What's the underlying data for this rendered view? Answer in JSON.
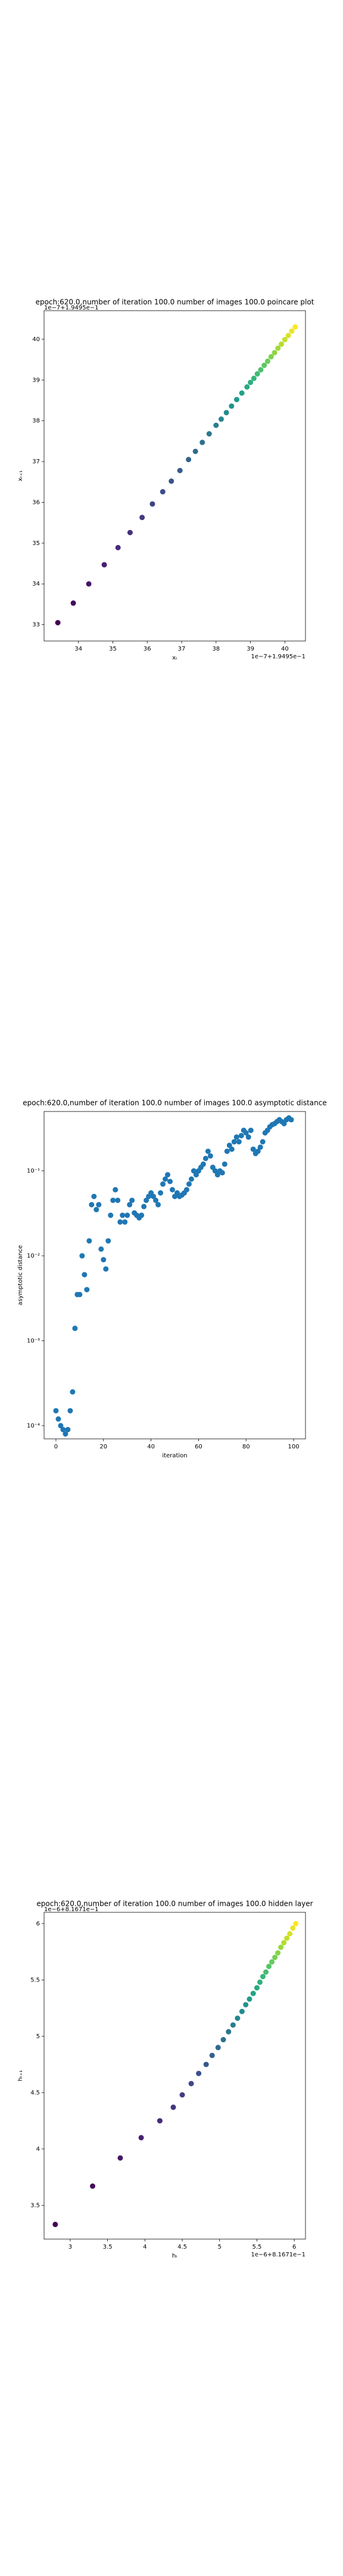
{
  "chart_data": [
    {
      "type": "scatter",
      "title": "epoch:620.0,number of iteration 100.0  number of images 100.0 poincare plot",
      "xlabel": "xₜ",
      "ylabel": "xₜ₊₁",
      "x_offset": "1e−7+1.9495e−1",
      "y_offset": "1e−7+1.9495e−1",
      "colormap": "viridis",
      "x": [
        33.4,
        33.85,
        34.3,
        34.75,
        35.15,
        35.5,
        35.85,
        36.15,
        36.45,
        36.7,
        36.95,
        37.2,
        37.4,
        37.6,
        37.8,
        38.0,
        38.15,
        38.3,
        38.45,
        38.6,
        38.75,
        38.9,
        39.0,
        39.1,
        39.2,
        39.3,
        39.4,
        39.5,
        39.6,
        39.7,
        39.8,
        39.9,
        40.0,
        40.1,
        40.2,
        40.3
      ],
      "values": [
        33.05,
        33.53,
        34.0,
        34.47,
        34.89,
        35.26,
        35.63,
        35.96,
        36.26,
        36.52,
        36.78,
        37.05,
        37.25,
        37.47,
        37.68,
        37.89,
        38.04,
        38.2,
        38.36,
        38.52,
        38.68,
        38.83,
        38.94,
        39.04,
        39.15,
        39.25,
        39.36,
        39.46,
        39.57,
        39.67,
        39.78,
        39.88,
        39.99,
        40.09,
        40.2,
        40.3
      ],
      "xlim": [
        33.0,
        40.6
      ],
      "ylim": [
        32.6,
        40.7
      ],
      "xticks": [
        34,
        35,
        36,
        37,
        38,
        39,
        40
      ],
      "yticks": [
        33,
        34,
        35,
        36,
        37,
        38,
        39,
        40
      ]
    },
    {
      "type": "scatter",
      "title": "epoch:620.0,number of iteration 100.0  number of images 100.0 asymptotic distance",
      "xlabel": "iteration",
      "ylabel": "asymptotic distance",
      "color": "#1f77b4",
      "log_y": true,
      "x": [
        0,
        1,
        2,
        3,
        4,
        5,
        6,
        7,
        8,
        9,
        10,
        11,
        12,
        13,
        14,
        15,
        16,
        17,
        18,
        19,
        20,
        21,
        22,
        23,
        24,
        25,
        26,
        27,
        28,
        29,
        30,
        31,
        32,
        33,
        34,
        35,
        36,
        37,
        38,
        39,
        40,
        41,
        42,
        43,
        44,
        45,
        46,
        47,
        48,
        49,
        50,
        51,
        52,
        53,
        54,
        55,
        56,
        57,
        58,
        59,
        60,
        61,
        62,
        63,
        64,
        65,
        66,
        67,
        68,
        69,
        70,
        71,
        72,
        73,
        74,
        75,
        76,
        77,
        78,
        79,
        80,
        81,
        82,
        83,
        84,
        85,
        86,
        87,
        88,
        89,
        90,
        91,
        92,
        93,
        94,
        95,
        96,
        97,
        98,
        99
      ],
      "values": [
        0.00015,
        0.00012,
        0.0001,
        9e-05,
        8e-05,
        9e-05,
        0.00015,
        0.00025,
        0.0014,
        0.0035,
        0.0035,
        0.01,
        0.006,
        0.004,
        0.015,
        0.04,
        0.05,
        0.035,
        0.04,
        0.012,
        0.009,
        0.007,
        0.015,
        0.03,
        0.045,
        0.06,
        0.045,
        0.025,
        0.03,
        0.025,
        0.03,
        0.04,
        0.045,
        0.032,
        0.03,
        0.028,
        0.03,
        0.038,
        0.045,
        0.05,
        0.055,
        0.05,
        0.045,
        0.04,
        0.055,
        0.07,
        0.08,
        0.09,
        0.075,
        0.06,
        0.05,
        0.055,
        0.05,
        0.052,
        0.055,
        0.06,
        0.07,
        0.08,
        0.1,
        0.09,
        0.1,
        0.11,
        0.12,
        0.14,
        0.17,
        0.15,
        0.11,
        0.1,
        0.09,
        0.1,
        0.095,
        0.12,
        0.17,
        0.2,
        0.18,
        0.22,
        0.25,
        0.22,
        0.26,
        0.3,
        0.28,
        0.25,
        0.3,
        0.18,
        0.16,
        0.17,
        0.19,
        0.22,
        0.28,
        0.3,
        0.33,
        0.35,
        0.36,
        0.38,
        0.4,
        0.38,
        0.36,
        0.4,
        0.42,
        0.4
      ],
      "xlim": [
        -5,
        105
      ],
      "ylim": [
        7e-05,
        0.5
      ],
      "xticks": [
        0,
        20,
        40,
        60,
        80,
        100
      ],
      "yticks": [
        {
          "value": 0.0001,
          "label": "10⁻⁴"
        },
        {
          "value": 0.001,
          "label": "10⁻³"
        },
        {
          "value": 0.01,
          "label": "10⁻²"
        },
        {
          "value": 0.1,
          "label": "10⁻¹"
        }
      ]
    },
    {
      "type": "scatter",
      "title": "epoch:620.0,number of iteration 100.0  number of images 100.0 hidden layer",
      "xlabel": "hₜ",
      "ylabel": "hₜ₊₁",
      "x_offset": "1e−6+8.1671e−1",
      "y_offset": "1e−6+8.1671e−1",
      "colormap": "viridis",
      "x": [
        2.8,
        3.3,
        3.67,
        3.95,
        4.2,
        4.38,
        4.5,
        4.62,
        4.72,
        4.82,
        4.9,
        4.98,
        5.05,
        5.12,
        5.18,
        5.24,
        5.3,
        5.35,
        5.4,
        5.45,
        5.5,
        5.54,
        5.58,
        5.62,
        5.66,
        5.7,
        5.74,
        5.78,
        5.82,
        5.86,
        5.9,
        5.94,
        5.98,
        6.02
      ],
      "values": [
        3.33,
        3.67,
        3.92,
        4.1,
        4.25,
        4.37,
        4.48,
        4.58,
        4.67,
        4.75,
        4.83,
        4.9,
        4.97,
        5.04,
        5.1,
        5.16,
        5.22,
        5.28,
        5.33,
        5.38,
        5.43,
        5.48,
        5.53,
        5.57,
        5.62,
        5.66,
        5.7,
        5.74,
        5.79,
        5.83,
        5.87,
        5.91,
        5.96,
        6.0
      ],
      "xlim": [
        2.65,
        6.15
      ],
      "ylim": [
        3.2,
        6.1
      ],
      "xticks": [
        3.0,
        3.5,
        4.0,
        4.5,
        5.0,
        5.5,
        6.0
      ],
      "yticks": [
        3.5,
        4.0,
        4.5,
        5.0,
        5.5,
        6.0
      ]
    }
  ]
}
